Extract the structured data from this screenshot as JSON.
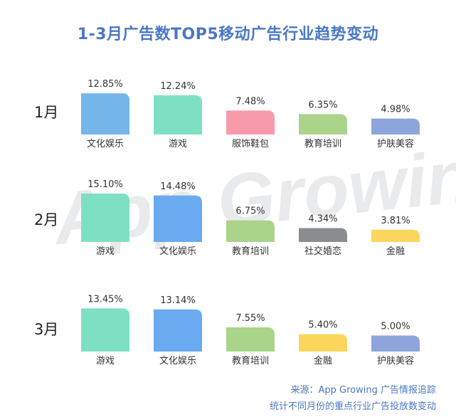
{
  "colors": {
    "title": "#4a78c4",
    "watermark": "#e9eaec",
    "footer": "#4a78c4",
    "text": "#333333"
  },
  "page": {
    "title": "1-3月广告数TOP5移动广告行业趋势变动",
    "watermark": "App Growing",
    "footer_source": "来源：App Growing 广告情报追踪",
    "footer_note": "统计不同月份的重点行业广告投放数变动"
  },
  "chart_data": {
    "type": "bar",
    "title": "1-3月广告数TOP5移动广告行业趋势变动",
    "unit": "%",
    "ylim": [
      0,
      15.1
    ],
    "panels": [
      {
        "label": "1月",
        "categories": [
          "文化娱乐",
          "游戏",
          "服饰鞋包",
          "教育培训",
          "护肤美容"
        ],
        "values": [
          12.85,
          12.24,
          7.48,
          6.35,
          4.98
        ],
        "value_labels": [
          "12.85%",
          "12.24%",
          "7.48%",
          "6.35%",
          "4.98%"
        ],
        "colors": [
          "#74b6ea",
          "#7ee0c2",
          "#f89aaa",
          "#a9d48a",
          "#8ea5dc"
        ]
      },
      {
        "label": "2月",
        "categories": [
          "游戏",
          "文化娱乐",
          "教育培训",
          "社交婚恋",
          "金融"
        ],
        "values": [
          15.1,
          14.48,
          6.75,
          4.34,
          3.81
        ],
        "value_labels": [
          "15.10%",
          "14.48%",
          "6.75%",
          "4.34%",
          "3.81%"
        ],
        "colors": [
          "#7ee0c2",
          "#6aaaf0",
          "#a9d48a",
          "#8a8d90",
          "#fcd65c"
        ]
      },
      {
        "label": "3月",
        "categories": [
          "游戏",
          "文化娱乐",
          "教育培训",
          "金融",
          "护肤美容"
        ],
        "values": [
          13.45,
          13.14,
          7.55,
          5.4,
          5.0
        ],
        "value_labels": [
          "13.45%",
          "13.14%",
          "7.55%",
          "5.40%",
          "5.00%"
        ],
        "colors": [
          "#7ee0c2",
          "#6aaaf0",
          "#a9d48a",
          "#fcd65c",
          "#8ea5dc"
        ]
      }
    ]
  }
}
